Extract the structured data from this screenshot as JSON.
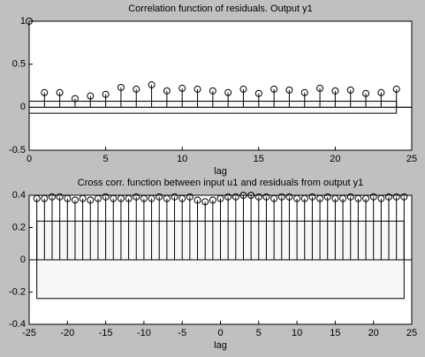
{
  "chart_data": [
    {
      "type": "stem",
      "title": "Correlation function of residuals. Output y1",
      "x_label": "lag",
      "x": [
        0,
        1,
        2,
        3,
        4,
        5,
        6,
        7,
        8,
        9,
        10,
        11,
        12,
        13,
        14,
        15,
        16,
        17,
        18,
        19,
        20,
        21,
        22,
        23,
        24
      ],
      "values": [
        1,
        0.17,
        0.17,
        0.1,
        0.13,
        0.15,
        0.23,
        0.21,
        0.26,
        0.19,
        0.22,
        0.21,
        0.19,
        0.17,
        0.21,
        0.16,
        0.21,
        0.2,
        0.17,
        0.22,
        0.19,
        0.2,
        0.16,
        0.17,
        0.21
      ],
      "color": "#000000",
      "band": [
        -0.07,
        0.07
      ],
      "band_x": [
        0,
        24
      ],
      "xlim": [
        0,
        25
      ],
      "xticks": [
        0,
        5,
        10,
        15,
        20,
        25
      ],
      "ylim": [
        -0.5,
        1
      ],
      "yticks": [
        -0.5,
        0,
        0.5,
        1
      ]
    },
    {
      "type": "stem",
      "title": "Cross corr. function between input u1 and residuals from output y1",
      "x_label": "lag",
      "x": [
        -24,
        -23,
        -22,
        -21,
        -20,
        -19,
        -18,
        -17,
        -16,
        -15,
        -14,
        -13,
        -12,
        -11,
        -10,
        -9,
        -8,
        -7,
        -6,
        -5,
        -4,
        -3,
        -2,
        -1,
        0,
        1,
        2,
        3,
        4,
        5,
        6,
        7,
        8,
        9,
        10,
        11,
        12,
        13,
        14,
        15,
        16,
        17,
        18,
        19,
        20,
        21,
        22,
        23,
        24
      ],
      "values": [
        0.38,
        0.38,
        0.39,
        0.39,
        0.38,
        0.37,
        0.38,
        0.37,
        0.38,
        0.39,
        0.38,
        0.38,
        0.38,
        0.39,
        0.38,
        0.38,
        0.39,
        0.38,
        0.39,
        0.38,
        0.39,
        0.37,
        0.36,
        0.37,
        0.38,
        0.39,
        0.39,
        0.4,
        0.4,
        0.39,
        0.39,
        0.38,
        0.39,
        0.39,
        0.38,
        0.38,
        0.39,
        0.38,
        0.39,
        0.38,
        0.38,
        0.39,
        0.38,
        0.38,
        0.39,
        0.38,
        0.39,
        0.39,
        0.39
      ],
      "color": "#000000",
      "band": [
        -0.24,
        0.24
      ],
      "band_x": [
        -24,
        24
      ],
      "xlim": [
        -25,
        25
      ],
      "xticks": [
        -25,
        -20,
        -15,
        -10,
        -5,
        0,
        5,
        10,
        15,
        20,
        25
      ],
      "ylim": [
        -0.4,
        0.4
      ],
      "yticks": [
        -0.4,
        -0.2,
        0,
        0.2,
        0.4
      ]
    }
  ]
}
